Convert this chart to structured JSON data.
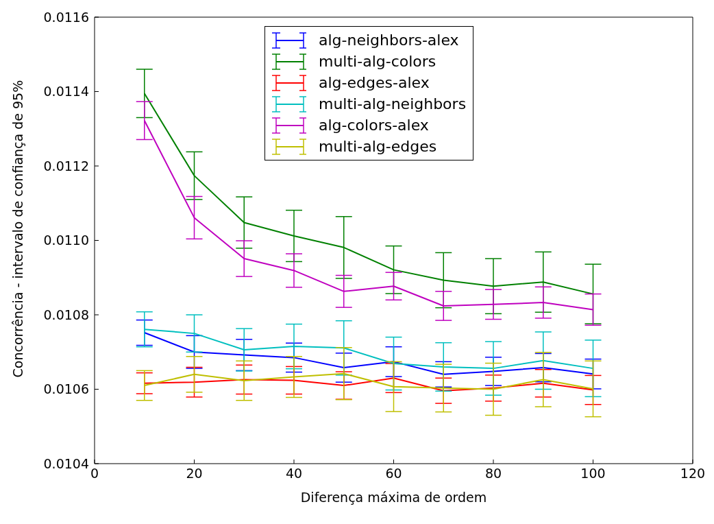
{
  "chart_data": {
    "type": "line",
    "xlabel": "Diferença máxima de ordem",
    "ylabel": "Concorrência - intervalo de confiança de 95%",
    "x": [
      10,
      20,
      30,
      40,
      50,
      60,
      70,
      80,
      90,
      100
    ],
    "xlim": [
      0,
      120
    ],
    "xticks": [
      0,
      20,
      40,
      60,
      80,
      100,
      120
    ],
    "ylim": [
      0.0104,
      0.0116
    ],
    "yticks": [
      0.0104,
      0.0106,
      0.0108,
      {
        "value": 0.011,
        "label": "0.0110"
      },
      0.0112,
      0.0114,
      0.0116
    ],
    "grid": false,
    "legend": "top",
    "marker": "none",
    "line_style": "solid",
    "series": [
      {
        "name": "alg-neighbors-alex",
        "color": "#0000ff",
        "values": [
          0.010752,
          0.0107,
          0.010692,
          0.010685,
          0.010658,
          0.010674,
          0.01064,
          0.010648,
          0.010658,
          0.010641
        ],
        "errors": [
          3.4e-05,
          4.4e-05,
          4.2e-05,
          3.9e-05,
          3.9e-05,
          4e-05,
          3.4e-05,
          3.8e-05,
          3.8e-05,
          4e-05
        ]
      },
      {
        "name": "multi-alg-colors",
        "color": "#008000",
        "values": [
          0.011395,
          0.011174,
          0.011048,
          0.011012,
          0.010981,
          0.010921,
          0.010893,
          0.010877,
          0.010888,
          0.010856
        ],
        "errors": [
          6.5e-05,
          6.4e-05,
          6.9e-05,
          6.9e-05,
          8.3e-05,
          6.4e-05,
          7.4e-05,
          7.4e-05,
          8.1e-05,
          8e-05
        ]
      },
      {
        "name": "alg-edges-alex",
        "color": "#ff0000",
        "values": [
          0.010616,
          0.010619,
          0.010626,
          0.010624,
          0.01061,
          0.01063,
          0.010596,
          0.010603,
          0.010616,
          0.010598
        ],
        "errors": [
          2.8e-05,
          4e-05,
          3.9e-05,
          3.7e-05,
          3.7e-05,
          3.9e-05,
          3.4e-05,
          3.5e-05,
          3.7e-05,
          3.9e-05
        ]
      },
      {
        "name": "multi-alg-neighbors",
        "color": "#00bfbf",
        "values": [
          0.010761,
          0.01075,
          0.010706,
          0.010715,
          0.010711,
          0.010669,
          0.01066,
          0.010656,
          0.010677,
          0.010656
        ],
        "errors": [
          4.7e-05,
          5e-05,
          5.7e-05,
          6e-05,
          7.3e-05,
          7.1e-05,
          6.5e-05,
          7.2e-05,
          7.7e-05,
          7.6e-05
        ]
      },
      {
        "name": "alg-colors-alex",
        "color": "#bf00bf",
        "values": [
          0.011322,
          0.011061,
          0.010951,
          0.010919,
          0.010863,
          0.010877,
          0.010824,
          0.010828,
          0.010833,
          0.010814
        ],
        "errors": [
          5.1e-05,
          5.7e-05,
          4.8e-05,
          4.5e-05,
          4.3e-05,
          3.7e-05,
          3.9e-05,
          4e-05,
          4.2e-05,
          4.2e-05
        ]
      },
      {
        "name": "multi-alg-edges",
        "color": "#bfbf00",
        "values": [
          0.01061,
          0.01064,
          0.010623,
          0.010633,
          0.010642,
          0.010607,
          0.010603,
          0.0106,
          0.010626,
          0.010601
        ],
        "errors": [
          4e-05,
          4.8e-05,
          5.3e-05,
          5.5e-05,
          7e-05,
          6.7e-05,
          6.4e-05,
          7e-05,
          7.3e-05,
          7.5e-05
        ]
      }
    ]
  }
}
